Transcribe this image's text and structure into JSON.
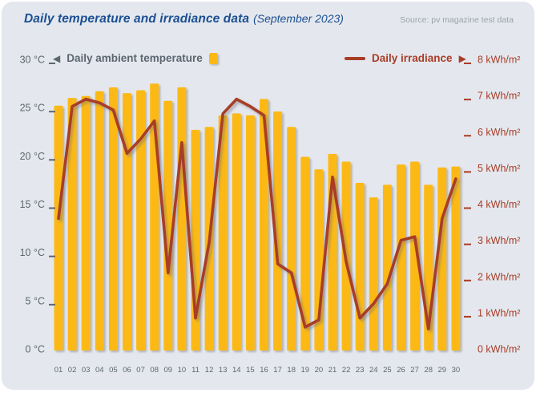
{
  "header": {
    "title": "Daily temperature and irradiance data",
    "subtitle": "(September 2023)",
    "source": "Source: pv magazine test data"
  },
  "legend": {
    "temperature_label": "Daily ambient temperature",
    "irradiance_label": "Daily irradiance",
    "left_axis_unit": "°C",
    "right_axis_unit": "kWh/m²"
  },
  "colors": {
    "bar": "#fcb913",
    "line": "#a93c26",
    "axis_left_text": "#5c6670",
    "axis_right_text": "#a93c26",
    "title_text": "#1b4f93",
    "source_text": "#9aa2aa",
    "panel_bg": "#e4e8ee"
  },
  "chart_data": {
    "type": "bar",
    "title": "Daily temperature and irradiance data (September 2023)",
    "grid": false,
    "legend_position": "top",
    "categories": [
      "01",
      "02",
      "03",
      "04",
      "05",
      "06",
      "07",
      "08",
      "09",
      "10",
      "11",
      "12",
      "13",
      "14",
      "15",
      "16",
      "17",
      "18",
      "19",
      "20",
      "21",
      "22",
      "23",
      "24",
      "25",
      "26",
      "27",
      "28",
      "29",
      "30"
    ],
    "series": [
      {
        "name": "Daily ambient temperature",
        "type": "bar",
        "axis": "left",
        "unit": "°C",
        "values": [
          25.2,
          26.0,
          26.2,
          26.7,
          27.1,
          26.5,
          26.8,
          27.5,
          25.7,
          27.1,
          22.7,
          23.0,
          24.2,
          24.4,
          24.2,
          25.9,
          24.6,
          23.0,
          19.9,
          18.6,
          20.2,
          19.4,
          17.2,
          15.7,
          17.0,
          19.1,
          19.4,
          17.0,
          18.8,
          18.9
        ]
      },
      {
        "name": "Daily irradiance",
        "type": "line",
        "axis": "right",
        "unit": "kWh/m²",
        "values": [
          3.6,
          6.7,
          6.9,
          6.8,
          6.6,
          5.4,
          5.8,
          6.3,
          2.1,
          5.7,
          0.85,
          2.95,
          6.5,
          6.9,
          6.7,
          6.45,
          2.35,
          2.1,
          0.6,
          0.8,
          4.75,
          2.4,
          0.85,
          1.25,
          1.8,
          3.0,
          3.1,
          0.55,
          3.6,
          4.7
        ]
      }
    ],
    "left_axis": {
      "min": 0,
      "max": 30,
      "tick_step": 5,
      "tick_labels": [
        "0 °C",
        "5 °C",
        "10 °C",
        "15 °C",
        "20 °C",
        "25 °C",
        "30 °C"
      ]
    },
    "right_axis": {
      "min": 0,
      "max": 8,
      "tick_step": 1,
      "tick_labels": [
        "0 kWh/m²",
        "1 kWh/m²",
        "2 kWh/m²",
        "3 kWh/m²",
        "4 kWh/m²",
        "5 kWh/m²",
        "6 kWh/m²",
        "7 kWh/m²",
        "8 kWh/m²"
      ]
    }
  }
}
